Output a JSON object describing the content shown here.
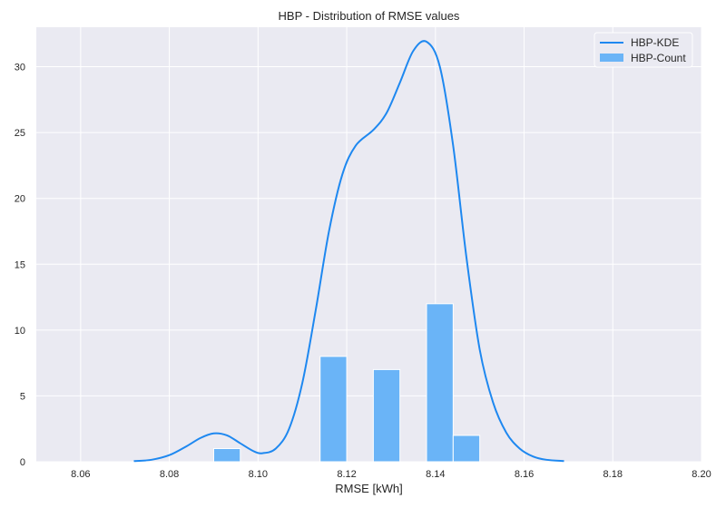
{
  "chart_data": {
    "type": "histogram",
    "title": "HBP - Distribution of RMSE values",
    "xlabel": "RMSE [kWh]",
    "ylabel": "",
    "xlim": [
      8.05,
      8.2
    ],
    "ylim": [
      0,
      33
    ],
    "x_ticks": [
      8.06,
      8.08,
      8.1,
      8.12,
      8.14,
      8.16,
      8.18,
      8.2
    ],
    "x_tick_labels": [
      "8.06",
      "8.08",
      "8.10",
      "8.12",
      "8.14",
      "8.16",
      "8.18",
      "8.20"
    ],
    "y_ticks": [
      0,
      5,
      10,
      15,
      20,
      25,
      30
    ],
    "y_tick_labels": [
      "0",
      "5",
      "10",
      "15",
      "20",
      "25",
      "30"
    ],
    "grid": true,
    "legend_position": "top-right",
    "colors": {
      "background": "#eaeaf2",
      "grid": "#ffffff",
      "kde": "#1e88f0",
      "bar": "#6ab4f7",
      "bar_edge": "#ffffff"
    },
    "series": [
      {
        "name": "HBP-Count",
        "type": "bar",
        "bars": [
          {
            "x0": 8.09,
            "x1": 8.096,
            "value": 1
          },
          {
            "x0": 8.114,
            "x1": 8.12,
            "value": 8
          },
          {
            "x0": 8.126,
            "x1": 8.132,
            "value": 7
          },
          {
            "x0": 8.138,
            "x1": 8.144,
            "value": 12
          },
          {
            "x0": 8.144,
            "x1": 8.15,
            "value": 2
          }
        ]
      },
      {
        "name": "HBP-KDE",
        "type": "line",
        "points": [
          [
            8.072,
            0.05
          ],
          [
            8.076,
            0.15
          ],
          [
            8.08,
            0.5
          ],
          [
            8.084,
            1.2
          ],
          [
            8.087,
            1.8
          ],
          [
            8.09,
            2.15
          ],
          [
            8.093,
            2.0
          ],
          [
            8.096,
            1.4
          ],
          [
            8.099,
            0.8
          ],
          [
            8.101,
            0.65
          ],
          [
            8.104,
            1.0
          ],
          [
            8.107,
            2.5
          ],
          [
            8.11,
            6.0
          ],
          [
            8.113,
            11.5
          ],
          [
            8.116,
            17.5
          ],
          [
            8.119,
            21.8
          ],
          [
            8.122,
            24.0
          ],
          [
            8.126,
            25.2
          ],
          [
            8.129,
            26.5
          ],
          [
            8.132,
            28.8
          ],
          [
            8.135,
            31.2
          ],
          [
            8.138,
            31.9
          ],
          [
            8.141,
            30.0
          ],
          [
            8.144,
            24.0
          ],
          [
            8.147,
            15.5
          ],
          [
            8.15,
            8.5
          ],
          [
            8.153,
            4.5
          ],
          [
            8.156,
            2.2
          ],
          [
            8.159,
            1.0
          ],
          [
            8.162,
            0.4
          ],
          [
            8.165,
            0.15
          ],
          [
            8.169,
            0.05
          ]
        ]
      }
    ]
  }
}
